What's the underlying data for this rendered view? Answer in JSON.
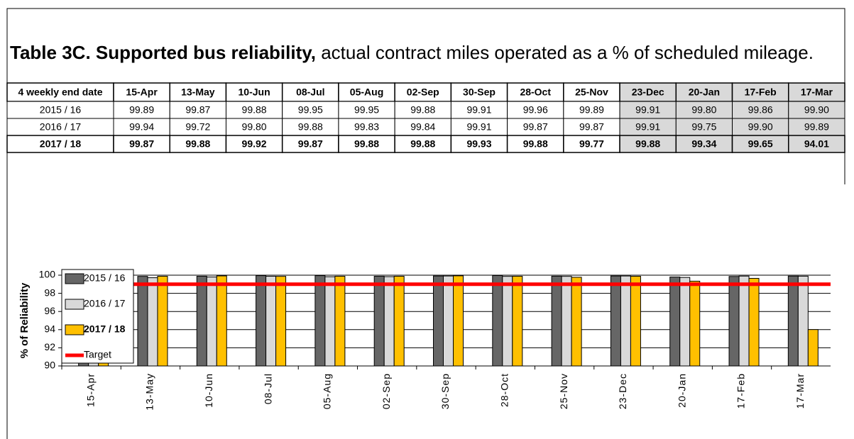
{
  "title_bold": "Table 3C.  Supported bus reliability,",
  "title_rest": " actual contract miles operated as a % of scheduled mileage.",
  "table": {
    "header": [
      "4 weekly end date",
      "15-Apr",
      "13-May",
      "10-Jun",
      "08-Jul",
      "05-Aug",
      "02-Sep",
      "30-Sep",
      "28-Oct",
      "25-Nov",
      "23-Dec",
      "20-Jan",
      "17-Feb",
      "17-Mar"
    ],
    "rows": [
      [
        "2015 / 16",
        "99.89",
        "99.87",
        "99.88",
        "99.95",
        "99.95",
        "99.88",
        "99.91",
        "99.96",
        "99.89",
        "99.91",
        "99.80",
        "99.86",
        "99.90"
      ],
      [
        "2016 / 17",
        "99.94",
        "99.72",
        "99.80",
        "99.88",
        "99.83",
        "99.84",
        "99.91",
        "99.87",
        "99.87",
        "99.91",
        "99.75",
        "99.90",
        "99.89"
      ],
      [
        "2017 / 18",
        "99.87",
        "99.88",
        "99.92",
        "99.87",
        "99.88",
        "99.88",
        "99.93",
        "99.88",
        "99.77",
        "99.88",
        "99.34",
        "99.65",
        "94.01"
      ]
    ]
  },
  "chart_data": {
    "type": "bar",
    "y_label": "% of Reliability",
    "categories": [
      "15-Apr",
      "13-May",
      "10-Jun",
      "08-Jul",
      "05-Aug",
      "02-Sep",
      "30-Sep",
      "28-Oct",
      "25-Nov",
      "23-Dec",
      "20-Jan",
      "17-Feb",
      "17-Mar"
    ],
    "series": [
      {
        "name": "2015 / 16",
        "color": "#666666",
        "values": [
          99.89,
          99.87,
          99.88,
          99.95,
          99.95,
          99.88,
          99.91,
          99.96,
          99.89,
          99.91,
          99.8,
          99.86,
          99.9
        ]
      },
      {
        "name": "2016 / 17",
        "color": "#d9d9d9",
        "values": [
          99.94,
          99.72,
          99.8,
          99.88,
          99.83,
          99.84,
          99.91,
          99.87,
          99.87,
          99.91,
          99.75,
          99.9,
          99.89
        ]
      },
      {
        "name": "2017 / 18",
        "color": "#ffc000",
        "values": [
          99.87,
          99.88,
          99.92,
          99.87,
          99.88,
          99.88,
          99.93,
          99.88,
          99.77,
          99.88,
          99.34,
          99.65,
          94.01
        ]
      }
    ],
    "target": {
      "name": "Target",
      "color": "#ff0000",
      "value": 99
    },
    "ylim": [
      90,
      100
    ],
    "yticks": [
      90,
      92,
      94,
      96,
      98,
      100
    ],
    "grid": true
  }
}
